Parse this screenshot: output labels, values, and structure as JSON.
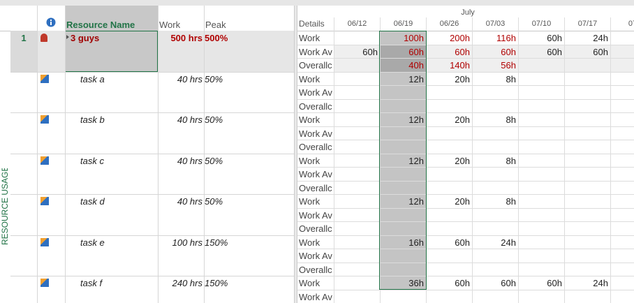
{
  "side_label": "RESOURCE USAGE",
  "header": {
    "columns": [
      "Resource Name",
      "Work",
      "Peak"
    ],
    "details": "Details",
    "month": "July",
    "dates": [
      "06/12",
      "06/19",
      "06/26",
      "07/03",
      "07/10",
      "07/17",
      "07/"
    ]
  },
  "rows": [
    {
      "id": "1",
      "name": "3 guys",
      "work": "500 hrs",
      "peak": "500%",
      "details": [
        {
          "label": "Work",
          "cells": [
            null,
            {
              "text": "100h",
              "color": "#b00000"
            },
            {
              "text": "200h",
              "color": "#b00000"
            },
            {
              "text": "116h",
              "color": "#b00000"
            },
            "60h",
            "24h"
          ]
        },
        {
          "label": "Work Av",
          "cells": [
            "60h",
            {
              "text": "60h",
              "color": "#b00000"
            },
            {
              "text": "60h",
              "color": "#b00000"
            },
            {
              "text": "60h",
              "color": "#b00000"
            },
            "60h",
            "60h"
          ]
        },
        {
          "label": "Overallc",
          "cells": [
            null,
            {
              "text": "40h",
              "color": "#b00000"
            },
            {
              "text": "140h",
              "color": "#b00000"
            },
            {
              "text": "56h",
              "color": "#b00000"
            }
          ]
        }
      ]
    },
    {
      "name": "task a",
      "work": "40 hrs",
      "peak": "50%",
      "details": [
        {
          "label": "Work",
          "cells": [
            null,
            "12h",
            "20h",
            "8h"
          ]
        },
        {
          "label": "Work Av"
        },
        {
          "label": "Overallc"
        }
      ]
    },
    {
      "name": "task b",
      "work": "40 hrs",
      "peak": "50%",
      "details": [
        {
          "label": "Work",
          "cells": [
            null,
            "12h",
            "20h",
            "8h"
          ]
        },
        {
          "label": "Work Av"
        },
        {
          "label": "Overallc"
        }
      ]
    },
    {
      "name": "task c",
      "work": "40 hrs",
      "peak": "50%",
      "details": [
        {
          "label": "Work",
          "cells": [
            null,
            "12h",
            "20h",
            "8h"
          ]
        },
        {
          "label": "Work Av"
        },
        {
          "label": "Overallc"
        }
      ]
    },
    {
      "name": "task d",
      "work": "40 hrs",
      "peak": "50%",
      "details": [
        {
          "label": "Work",
          "cells": [
            null,
            "12h",
            "20h",
            "8h"
          ]
        },
        {
          "label": "Work Av"
        },
        {
          "label": "Overallc"
        }
      ]
    },
    {
      "name": "task e",
      "work": "100 hrs",
      "peak": "150%",
      "details": [
        {
          "label": "Work",
          "cells": [
            null,
            "16h",
            "60h",
            "24h"
          ]
        },
        {
          "label": "Work Av"
        },
        {
          "label": "Overallc"
        }
      ]
    },
    {
      "name": "task f",
      "work": "240 hrs",
      "peak": "150%",
      "details": [
        {
          "label": "Work",
          "cells": [
            null,
            "36h",
            "60h",
            "60h",
            "60h",
            "24h"
          ]
        },
        {
          "label": "Work Av"
        }
      ]
    }
  ]
}
